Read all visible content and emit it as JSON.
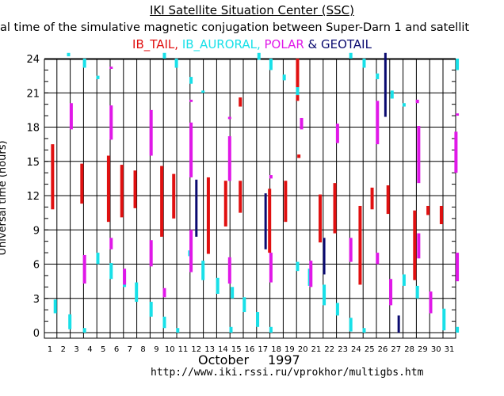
{
  "header": {
    "title": "IKI Satellite Situation Center (SSC)",
    "subtitle": "al time of the simulative magnetic conjugation between Super-Darn 1 and satellit"
  },
  "legend": {
    "items": [
      {
        "label": "IB_TAIL,",
        "color": "#e01010"
      },
      {
        "label": "IB_AURORAL,",
        "color": "#18e0e8"
      },
      {
        "label": "POLAR",
        "color": "#e018e8"
      },
      {
        "label": "& GEOTAIL",
        "color": "#0a0a70"
      }
    ]
  },
  "footer": {
    "month": "October",
    "year": "1997",
    "url": "http://www.iki.rssi.ru/vprokhor/multigbs.htm"
  },
  "chart_data": {
    "type": "bar",
    "title": "IKI Satellite Situation Center (SSC)",
    "subtitle": "al time of the simulative magnetic conjugation between Super-Darn 1 and satellit",
    "xlabel": "October 1997",
    "ylabel": "Universal time (hours)",
    "xlim": [
      1,
      31
    ],
    "ylim": [
      0,
      24
    ],
    "x_ticks": [
      1,
      2,
      3,
      4,
      5,
      6,
      7,
      8,
      9,
      10,
      11,
      12,
      13,
      14,
      15,
      16,
      17,
      18,
      19,
      20,
      21,
      22,
      23,
      24,
      25,
      26,
      27,
      28,
      29,
      30,
      31
    ],
    "y_ticks": [
      0,
      3,
      6,
      9,
      12,
      15,
      18,
      21,
      24
    ],
    "grid": true,
    "colors": {
      "IB_TAIL": "#e01010",
      "IB_AURORAL": "#18e0e8",
      "POLAR": "#e018e8",
      "GEOTAIL": "#0a0a70"
    },
    "series": [
      {
        "name": "IB_TAIL",
        "intervals": [
          [
            1.2,
            10.8,
            16.5
          ],
          [
            3.4,
            11.3,
            14.8
          ],
          [
            5.4,
            9.7,
            15.5
          ],
          [
            6.4,
            10.1,
            14.7
          ],
          [
            7.4,
            10.9,
            14.2
          ],
          [
            9.4,
            8.4,
            14.6
          ],
          [
            10.3,
            10.0,
            13.9
          ],
          [
            12.9,
            6.9,
            13.6
          ],
          [
            14.2,
            9.3,
            13.3
          ],
          [
            15.3,
            10.5,
            13.3
          ],
          [
            15.3,
            19.8,
            20.6
          ],
          [
            17.5,
            7.0,
            12.6
          ],
          [
            18.7,
            9.7,
            13.3
          ],
          [
            19.6,
            20.3,
            24.0
          ],
          [
            19.7,
            15.3,
            15.6
          ],
          [
            21.3,
            7.9,
            12.1
          ],
          [
            22.4,
            8.7,
            13.1
          ],
          [
            24.3,
            4.2,
            11.1
          ],
          [
            25.2,
            10.8,
            12.7
          ],
          [
            26.4,
            10.4,
            12.9
          ],
          [
            28.4,
            4.6,
            10.7
          ],
          [
            29.4,
            10.3,
            11.1
          ],
          [
            30.4,
            9.5,
            11.1
          ]
        ]
      },
      {
        "name": "IB_AURORAL",
        "intervals": [
          [
            1.4,
            1.7,
            2.9
          ],
          [
            2.4,
            24.2,
            24.5
          ],
          [
            2.5,
            0.3,
            1.6
          ],
          [
            3.6,
            23.2,
            24.0
          ],
          [
            3.6,
            0.0,
            0.4
          ],
          [
            4.6,
            22.2,
            22.5
          ],
          [
            4.6,
            6.0,
            7.0
          ],
          [
            5.6,
            4.7,
            6.1
          ],
          [
            6.6,
            4.0,
            5.4
          ],
          [
            7.5,
            2.7,
            4.4
          ],
          [
            8.6,
            1.4,
            2.7
          ],
          [
            9.6,
            24.0,
            24.5
          ],
          [
            9.6,
            0.4,
            1.4
          ],
          [
            10.5,
            23.2,
            24.0
          ],
          [
            10.6,
            0.0,
            0.4
          ],
          [
            11.5,
            6.7,
            7.2
          ],
          [
            11.6,
            21.8,
            22.4
          ],
          [
            12.5,
            21.0,
            21.2
          ],
          [
            12.5,
            4.6,
            6.3
          ],
          [
            13.6,
            3.4,
            4.8
          ],
          [
            14.6,
            0.0,
            0.5
          ],
          [
            14.7,
            3.0,
            4.0
          ],
          [
            15.6,
            1.8,
            3.1
          ],
          [
            16.6,
            0.5,
            1.8
          ],
          [
            16.7,
            23.9,
            24.5
          ],
          [
            17.6,
            0.0,
            0.5
          ],
          [
            17.6,
            23.0,
            24.0
          ],
          [
            18.6,
            22.1,
            22.6
          ],
          [
            19.6,
            20.8,
            21.5
          ],
          [
            19.6,
            5.4,
            6.2
          ],
          [
            20.5,
            4.1,
            5.6
          ],
          [
            21.6,
            2.4,
            4.2
          ],
          [
            22.6,
            1.5,
            2.6
          ],
          [
            23.6,
            24.0,
            24.5
          ],
          [
            23.6,
            0.1,
            1.3
          ],
          [
            24.6,
            23.2,
            24.0
          ],
          [
            24.6,
            0.0,
            0.4
          ],
          [
            25.6,
            22.2,
            22.7
          ],
          [
            26.7,
            20.5,
            21.2
          ],
          [
            27.6,
            19.8,
            20.1
          ],
          [
            27.6,
            4.1,
            5.1
          ],
          [
            28.6,
            3.0,
            4.1
          ],
          [
            29.6,
            1.7,
            3.3
          ],
          [
            30.6,
            0.2,
            2.1
          ],
          [
            31.6,
            0.0,
            0.5
          ],
          [
            31.6,
            23.0,
            24.0
          ]
        ]
      },
      {
        "name": "POLAR",
        "intervals": [
          [
            2.6,
            17.8,
            20.1
          ],
          [
            3.6,
            4.3,
            6.8
          ],
          [
            5.6,
            16.9,
            19.9
          ],
          [
            5.6,
            23.1,
            23.3
          ],
          [
            5.6,
            7.3,
            8.3
          ],
          [
            6.6,
            4.2,
            5.6
          ],
          [
            8.6,
            15.5,
            19.5
          ],
          [
            8.6,
            5.8,
            8.1
          ],
          [
            9.6,
            3.1,
            3.9
          ],
          [
            11.6,
            5.3,
            9.0
          ],
          [
            11.6,
            13.6,
            18.4
          ],
          [
            11.6,
            20.2,
            20.4
          ],
          [
            14.5,
            4.3,
            6.6
          ],
          [
            14.5,
            13.3,
            17.2
          ],
          [
            14.5,
            18.7,
            18.9
          ],
          [
            17.6,
            13.5,
            13.8
          ],
          [
            17.6,
            4.4,
            7.0
          ],
          [
            19.9,
            17.8,
            18.8
          ],
          [
            20.6,
            4.0,
            6.3
          ],
          [
            22.6,
            16.6,
            18.3
          ],
          [
            23.6,
            6.2,
            8.3
          ],
          [
            25.6,
            6.0,
            7.0
          ],
          [
            25.6,
            16.5,
            20.3
          ],
          [
            26.6,
            2.4,
            4.7
          ],
          [
            28.6,
            20.1,
            20.4
          ],
          [
            28.7,
            6.5,
            8.7
          ],
          [
            28.7,
            13.1,
            18.1
          ],
          [
            29.6,
            1.7,
            3.6
          ],
          [
            31.5,
            14.0,
            17.6
          ],
          [
            31.6,
            4.5,
            7.0
          ],
          [
            31.6,
            19.0,
            19.2
          ]
        ]
      },
      {
        "name": "GEOTAIL",
        "intervals": [
          [
            12.0,
            8.4,
            13.4
          ],
          [
            17.2,
            7.3,
            12.2
          ],
          [
            21.6,
            5.1,
            8.3
          ],
          [
            26.2,
            18.9,
            24.5
          ],
          [
            27.2,
            0.0,
            1.5
          ]
        ]
      }
    ]
  }
}
